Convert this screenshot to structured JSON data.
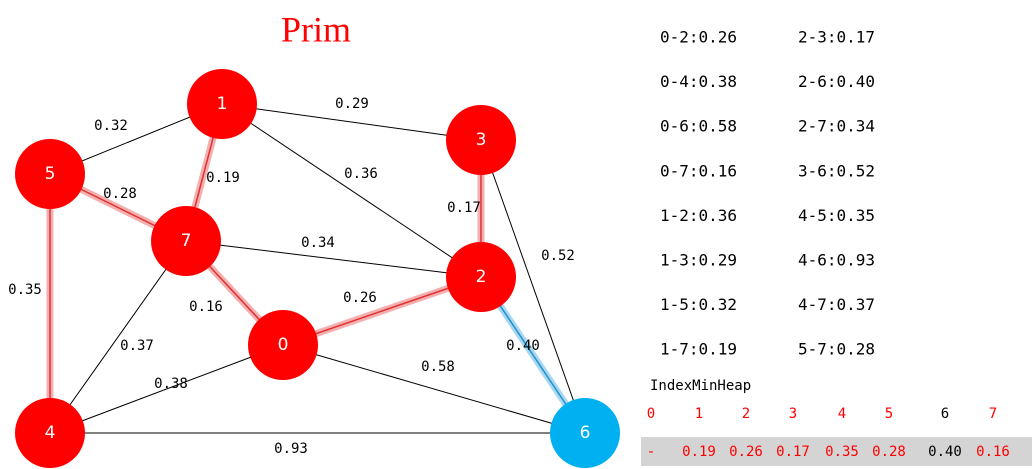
{
  "title": "Prim",
  "nodes": [
    {
      "label": "0"
    },
    {
      "label": "1"
    },
    {
      "label": "2"
    },
    {
      "label": "3"
    },
    {
      "label": "4"
    },
    {
      "label": "5"
    },
    {
      "label": "6"
    },
    {
      "label": "7"
    }
  ],
  "edges": [
    {
      "label": "0.32"
    },
    {
      "label": "0.29"
    },
    {
      "label": "0.36"
    },
    {
      "label": "0.19"
    },
    {
      "label": "0.28"
    },
    {
      "label": "0.17"
    },
    {
      "label": "0.52"
    },
    {
      "label": "0.34"
    },
    {
      "label": "0.16"
    },
    {
      "label": "0.26"
    },
    {
      "label": "0.40"
    },
    {
      "label": "0.35"
    },
    {
      "label": "0.37"
    },
    {
      "label": "0.38"
    },
    {
      "label": "0.58"
    },
    {
      "label": "0.93"
    }
  ],
  "edge_list": [
    "0-2:0.26",
    "2-3:0.17",
    "0-4:0.38",
    "2-6:0.40",
    "0-6:0.58",
    "2-7:0.34",
    "0-7:0.16",
    "3-6:0.52",
    "1-2:0.36",
    "4-5:0.35",
    "1-3:0.29",
    "4-6:0.93",
    "1-5:0.32",
    "4-7:0.37",
    "1-7:0.19",
    "5-7:0.28"
  ],
  "heap": {
    "title": "IndexMinHeap",
    "index": [
      "0",
      "1",
      "2",
      "3",
      "4",
      "5",
      "6",
      "7"
    ],
    "values": [
      "-",
      "0.19",
      "0.26",
      "0.17",
      "0.35",
      "0.28",
      "0.40",
      "0.16"
    ]
  }
}
